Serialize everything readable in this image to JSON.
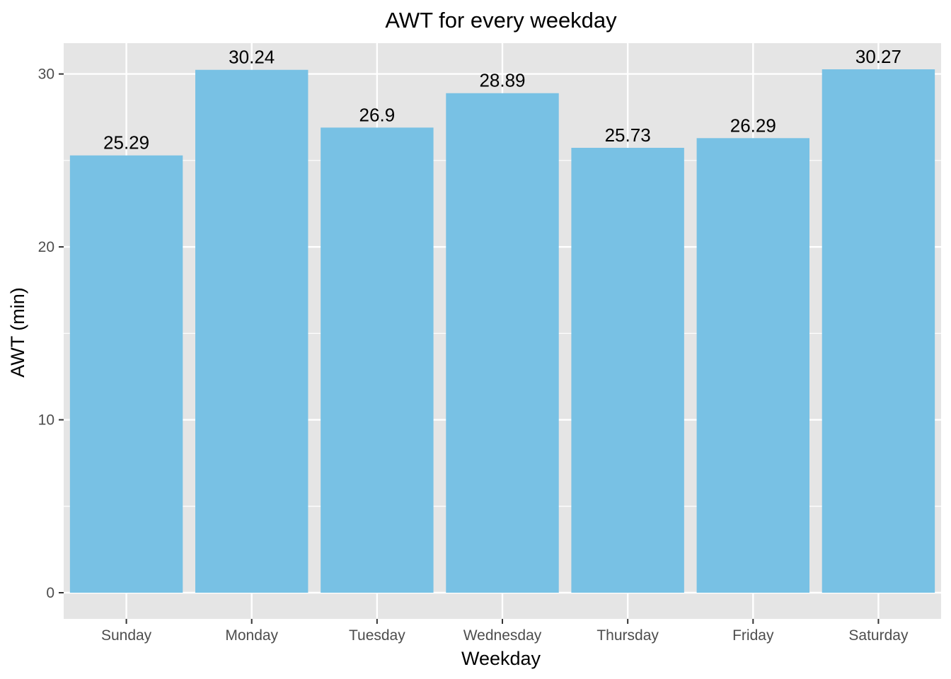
{
  "chart_data": {
    "type": "bar",
    "title": "AWT for every weekday",
    "xlabel": "Weekday",
    "ylabel": "AWT (min)",
    "categories": [
      "Sunday",
      "Monday",
      "Tuesday",
      "Wednesday",
      "Thursday",
      "Friday",
      "Saturday"
    ],
    "values": [
      25.29,
      30.24,
      26.9,
      28.89,
      25.73,
      26.29,
      30.27
    ],
    "data_labels": [
      "25.29",
      "30.24",
      "26.9",
      "28.89",
      "25.73",
      "26.29",
      "30.27"
    ],
    "ylim": [
      -1.5135,
      31.7835
    ],
    "yticks": [
      0,
      10,
      20,
      30
    ],
    "ytick_labels": [
      "0",
      "10",
      "20",
      "30"
    ],
    "grid": true,
    "colors": {
      "bar": "#78c1e4",
      "panel": "#e5e5e5",
      "grid": "#ffffff",
      "axis_text": "#4d4d4d",
      "tick": "#333333"
    }
  }
}
